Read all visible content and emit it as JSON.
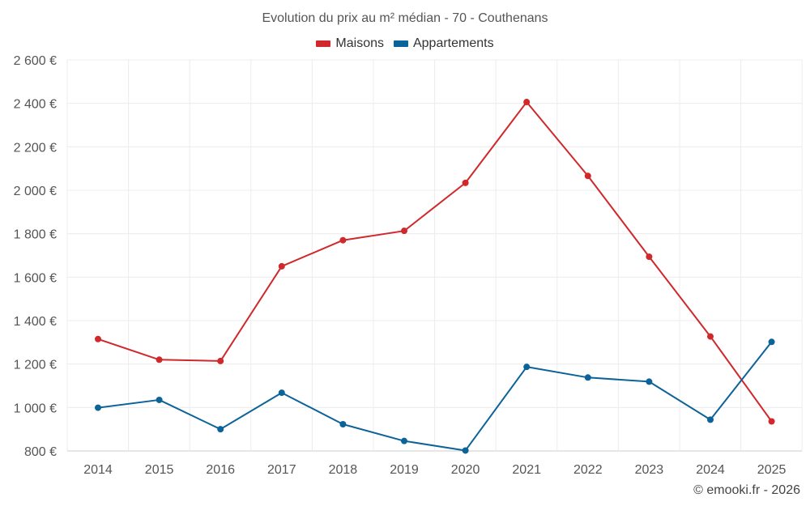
{
  "chart_data": {
    "type": "line",
    "title": "Evolution du prix au m² médian - 70 - Couthenans",
    "categories": [
      "2014",
      "2015",
      "2016",
      "2017",
      "2018",
      "2019",
      "2020",
      "2021",
      "2022",
      "2023",
      "2024",
      "2025"
    ],
    "series": [
      {
        "name": "Maisons",
        "color": "#d0282b",
        "values": [
          1315,
          1220,
          1214,
          1650,
          1770,
          1813,
          2034,
          2406,
          2066,
          1694,
          1327,
          936
        ]
      },
      {
        "name": "Appartements",
        "color": "#0c6399",
        "values": [
          999,
          1035,
          900,
          1068,
          923,
          846,
          802,
          1187,
          1138,
          1119,
          944,
          1302
        ]
      }
    ],
    "y_ticks": [
      800,
      1000,
      1200,
      1400,
      1600,
      1800,
      2000,
      2200,
      2400,
      2600
    ],
    "y_tick_labels": [
      "800 €",
      "1 000 €",
      "1 200 €",
      "1 400 €",
      "1 600 €",
      "1 800 €",
      "2 000 €",
      "2 200 €",
      "2 400 €",
      "2 600 €"
    ],
    "ylim": [
      800,
      2600
    ],
    "xlabel": "",
    "ylabel": "",
    "grid": true,
    "legend_position": "top-center"
  },
  "credit": "© emooki.fr - 2026"
}
